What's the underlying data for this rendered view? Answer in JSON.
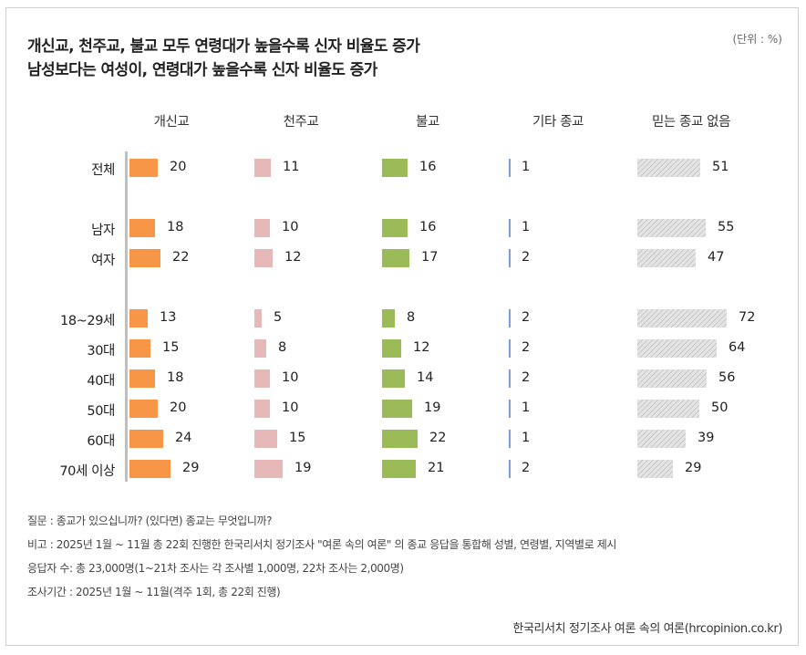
{
  "title_line1": "개신교, 천주교, 불교 모두 연령대가 높을수록 신자 비율도 증가",
  "title_line2": "남성보다는 여성이, 연령대가 높을수록 신자 비율도 증가",
  "unit": "(단위 : %)",
  "colors": {
    "protestant": "#f79646",
    "catholic": "#e6b8b7",
    "buddhist": "#9bbb59",
    "other": "#7d9bd6",
    "none_fill": "#e4e4e4",
    "none_hatch": "#b5b5b5"
  },
  "chart_data": {
    "type": "bar",
    "title": "개신교, 천주교, 불교 모두 연령대가 높을수록 신자 비율도 증가",
    "subtitle": "남성보다는 여성이, 연령대가 높을수록 신자 비율도 증가",
    "unit": "%",
    "categories": [
      "전체",
      "남자",
      "여자",
      "18~29세",
      "30대",
      "40대",
      "50대",
      "60대",
      "70세 이상"
    ],
    "series": [
      {
        "name": "개신교",
        "values": [
          20,
          18,
          22,
          13,
          15,
          18,
          20,
          24,
          29
        ]
      },
      {
        "name": "천주교",
        "values": [
          11,
          10,
          12,
          5,
          8,
          10,
          10,
          15,
          19
        ]
      },
      {
        "name": "불교",
        "values": [
          16,
          16,
          17,
          8,
          12,
          14,
          19,
          22,
          21
        ]
      },
      {
        "name": "기타 종교",
        "values": [
          1,
          1,
          2,
          2,
          2,
          2,
          1,
          1,
          2
        ]
      },
      {
        "name": "믿는 종교 없음",
        "values": [
          51,
          55,
          47,
          72,
          64,
          56,
          50,
          39,
          29
        ]
      }
    ]
  },
  "notes": {
    "question": "질문 : 종교가 있으십니까? (있다면) 종교는 무엇입니까?",
    "comparison": "비고 : 2025년 1월 ~ 11월 총 22회 진행한 한국리서치 정기조사 \"여론 속의 여론\" 의 종교 응답을 통합해 성별, 연령별, 지역별로 제시",
    "respondents": "응답자 수: 총 23,000명(1~21차 조사는 각 조사별 1,000명, 22차 조사는 2,000명)",
    "period": "조사기간 : 2025년 1월 ~ 11월(격주 1회, 총 22회 진행)"
  },
  "source": "한국리서치 정기조사 여론 속의 여론(hrcopinion.co.kr)"
}
